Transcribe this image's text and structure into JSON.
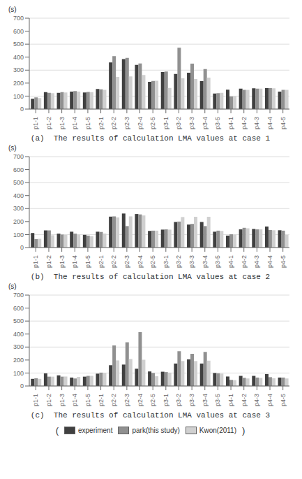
{
  "chart_data": [
    {
      "type": "bar",
      "subtitle": "(a)  The results of calculation LMA values at case 1",
      "ylabel": "(s)",
      "categories": [
        "p1-1",
        "p1-2",
        "p1-3",
        "p1-4",
        "p1-5",
        "p2-1",
        "p2-2",
        "p2-3",
        "p2-4",
        "p2-5",
        "p3-1",
        "p3-2",
        "p3-3",
        "p3-4",
        "p3-5",
        "p4-1",
        "p4-2",
        "p4-3",
        "p4-4",
        "p4-5"
      ],
      "series": [
        {
          "name": "experiment",
          "color": "#404040",
          "values": [
            80,
            130,
            125,
            135,
            128,
            155,
            360,
            385,
            340,
            210,
            285,
            270,
            280,
            215,
            120,
            150,
            158,
            160,
            162,
            135
          ]
        },
        {
          "name": "park(this study)",
          "color": "#909090",
          "values": [
            90,
            125,
            130,
            138,
            132,
            152,
            408,
            395,
            352,
            217,
            290,
            473,
            350,
            308,
            122,
            97,
            148,
            158,
            162,
            148
          ]
        },
        {
          "name": "Kwon(2011)",
          "color": "#d0d0d0",
          "values": [
            85,
            122,
            128,
            135,
            130,
            148,
            248,
            252,
            262,
            218,
            163,
            237,
            232,
            242,
            125,
            98,
            148,
            157,
            160,
            148
          ]
        }
      ],
      "ylim": [
        0,
        700
      ],
      "yticks": [
        0,
        100,
        200,
        300,
        400,
        500,
        600,
        700
      ],
      "grid": true
    },
    {
      "type": "bar",
      "subtitle": "(b)  The results of calculation LMA values at case 2",
      "ylabel": "(s)",
      "categories": [
        "p1-1",
        "p1-2",
        "p1-3",
        "p1-4",
        "p1-5",
        "p2-1",
        "p2-2",
        "p2-3",
        "p2-4",
        "p2-5",
        "p3-1",
        "p3-2",
        "p3-3",
        "p3-4",
        "p3-5",
        "p4-1",
        "p4-2",
        "p4-3",
        "p4-4",
        "p4-5"
      ],
      "series": [
        {
          "name": "experiment",
          "color": "#404040",
          "values": [
            112,
            132,
            107,
            122,
            98,
            122,
            238,
            262,
            258,
            128,
            138,
            197,
            177,
            197,
            122,
            92,
            140,
            143,
            162,
            133
          ]
        },
        {
          "name": "park(this study)",
          "color": "#909090",
          "values": [
            65,
            132,
            100,
            107,
            92,
            120,
            240,
            165,
            255,
            130,
            140,
            200,
            182,
            165,
            130,
            102,
            152,
            140,
            135,
            130
          ]
        },
        {
          "name": "Kwon(2011)",
          "color": "#d0d0d0",
          "values": [
            67,
            95,
            98,
            100,
            88,
            108,
            232,
            240,
            247,
            130,
            138,
            235,
            237,
            237,
            128,
            100,
            148,
            140,
            133,
            97
          ]
        }
      ],
      "ylim": [
        0,
        700
      ],
      "yticks": [
        0,
        100,
        200,
        300,
        400,
        500,
        600,
        700
      ],
      "grid": true
    },
    {
      "type": "bar",
      "subtitle": "(c)  The results of calculation LMA values at case 3",
      "ylabel": "(s)",
      "categories": [
        "p1-1",
        "p1-2",
        "p1-3",
        "p1-4",
        "p1-5",
        "p2-1",
        "p2-2",
        "p2-3",
        "p2-4",
        "p2-5",
        "p3-1",
        "p3-2",
        "p3-3",
        "p3-4",
        "p3-5",
        "p4-1",
        "p4-2",
        "p4-3",
        "p4-4",
        "p4-5"
      ],
      "series": [
        {
          "name": "experiment",
          "color": "#404040",
          "values": [
            55,
            97,
            82,
            65,
            72,
            95,
            160,
            165,
            133,
            112,
            110,
            173,
            205,
            173,
            100,
            73,
            78,
            78,
            92,
            65
          ]
        },
        {
          "name": "park(this study)",
          "color": "#909090",
          "values": [
            60,
            72,
            72,
            58,
            78,
            103,
            312,
            337,
            415,
            100,
            107,
            268,
            248,
            262,
            97,
            47,
            63,
            65,
            68,
            65
          ]
        },
        {
          "name": "Kwon(2011)",
          "color": "#d0d0d0",
          "values": [
            55,
            72,
            73,
            70,
            78,
            100,
            197,
            208,
            202,
            75,
            103,
            192,
            192,
            195,
            95,
            45,
            58,
            62,
            60,
            58
          ]
        }
      ],
      "ylim": [
        0,
        700
      ],
      "yticks": [
        0,
        100,
        200,
        300,
        400,
        500,
        600,
        700
      ],
      "grid": true,
      "legend": "bottom"
    }
  ],
  "annotations": [
    "(",
    ")"
  ]
}
